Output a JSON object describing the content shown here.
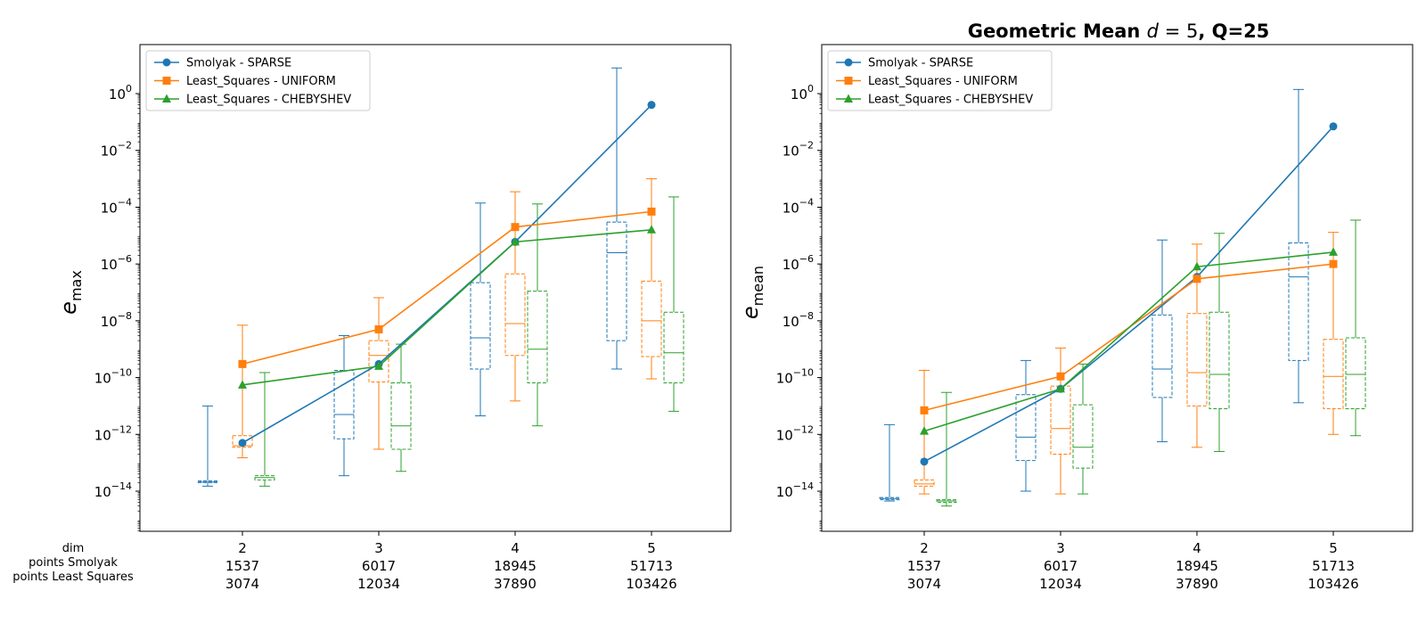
{
  "title": "Geometric Mean d = 5, Q=25",
  "row_labels": [
    "dim",
    "points Smolyak",
    "points Least Squares"
  ],
  "colors": {
    "smolyak": "#1f77b4",
    "uniform": "#ff7f0e",
    "chebyshev": "#2ca02c"
  },
  "chart_data": [
    {
      "type": "line",
      "ylabel": "e_max",
      "yscale": "log",
      "ylim": [
        1e-15,
        5
      ],
      "yticks": [
        "10^0",
        "10^-2",
        "10^-4",
        "10^-6",
        "10^-8",
        "10^-10",
        "10^-12",
        "10^-14"
      ],
      "categories": [
        {
          "dim": "2",
          "smolyak": "1537",
          "ls": "3074"
        },
        {
          "dim": "3",
          "smolyak": "6017",
          "ls": "12034"
        },
        {
          "dim": "4",
          "smolyak": "18945",
          "ls": "37890"
        },
        {
          "dim": "5",
          "smolyak": "51713",
          "ls": "103426"
        }
      ],
      "series": [
        {
          "name": "Smolyak - SPARSE",
          "marker": "circle",
          "values": [
            5e-13,
            3e-10,
            6e-06,
            0.4
          ],
          "boxes": [
            {
              "min": 1.5e-14,
              "q1": 2e-14,
              "median": 2.1e-14,
              "q3": 2.3e-14,
              "max": 1e-11
            },
            {
              "min": 3.5e-14,
              "q1": 7e-13,
              "median": 5e-12,
              "q3": 1.8e-10,
              "max": 3e-09
            },
            {
              "min": 4.5e-12,
              "q1": 2e-10,
              "median": 2.5e-09,
              "q3": 2.2e-07,
              "max": 0.00014
            },
            {
              "min": 2e-10,
              "q1": 2e-09,
              "median": 2.5e-06,
              "q3": 3e-05,
              "max": 8
            }
          ]
        },
        {
          "name": "Least_Squares - UNIFORM",
          "marker": "square",
          "values": [
            3e-10,
            5e-09,
            2e-05,
            7e-05
          ],
          "boxes": [
            {
              "min": 1.5e-13,
              "q1": 3.5e-13,
              "median": 4e-13,
              "q3": 9e-13,
              "max": 7e-09
            },
            {
              "min": 3e-13,
              "q1": 7e-11,
              "median": 6e-10,
              "q3": 2e-09,
              "max": 6.5e-08
            },
            {
              "min": 1.5e-11,
              "q1": 6e-10,
              "median": 8e-09,
              "q3": 4.5e-07,
              "max": 0.00035
            },
            {
              "min": 9e-11,
              "q1": 5.5e-10,
              "median": 1e-08,
              "q3": 2.5e-07,
              "max": 0.001
            }
          ]
        },
        {
          "name": "Least_Squares - CHEBYSHEV",
          "marker": "triangle",
          "values": [
            5.5e-11,
            2.5e-10,
            6e-06,
            1.6e-05
          ],
          "boxes": [
            {
              "min": 1.5e-14,
              "q1": 2.5e-14,
              "median": 3e-14,
              "q3": 3.5e-14,
              "max": 1.5e-10
            },
            {
              "min": 5e-14,
              "q1": 3e-13,
              "median": 2e-12,
              "q3": 6.5e-11,
              "max": 1.5e-09
            },
            {
              "min": 2e-12,
              "q1": 6.5e-11,
              "median": 1e-09,
              "q3": 1.1e-07,
              "max": 0.00013
            },
            {
              "min": 6.5e-12,
              "q1": 6.5e-11,
              "median": 7.5e-10,
              "q3": 2e-08,
              "max": 0.00023
            }
          ]
        }
      ]
    },
    {
      "type": "line",
      "title": "Geometric Mean d = 5, Q=25",
      "ylabel": "e_mean",
      "yscale": "log",
      "ylim": [
        1e-15,
        5
      ],
      "yticks": [
        "10^0",
        "10^-2",
        "10^-4",
        "10^-6",
        "10^-8",
        "10^-10",
        "10^-12",
        "10^-14"
      ],
      "categories": [
        {
          "dim": "2",
          "smolyak": "1537",
          "ls": "3074"
        },
        {
          "dim": "3",
          "smolyak": "6017",
          "ls": "12034"
        },
        {
          "dim": "4",
          "smolyak": "18945",
          "ls": "37890"
        },
        {
          "dim": "5",
          "smolyak": "51713",
          "ls": "103426"
        }
      ],
      "series": [
        {
          "name": "Smolyak - SPARSE",
          "marker": "circle",
          "values": [
            1.1e-13,
            4e-11,
            3.5e-07,
            0.07
          ],
          "boxes": [
            {
              "min": 4.5e-15,
              "q1": 5e-15,
              "median": 5.5e-15,
              "q3": 6e-15,
              "max": 2.2e-12
            },
            {
              "min": 1e-14,
              "q1": 1.2e-13,
              "median": 8e-13,
              "q3": 2.5e-11,
              "max": 4e-10
            },
            {
              "min": 5.5e-13,
              "q1": 2e-11,
              "median": 2e-10,
              "q3": 1.6e-08,
              "max": 7e-06
            },
            {
              "min": 1.3e-11,
              "q1": 4e-10,
              "median": 3.5e-07,
              "q3": 5.5e-06,
              "max": 1.4
            }
          ]
        },
        {
          "name": "Least_Squares - UNIFORM",
          "marker": "square",
          "values": [
            7e-12,
            1.1e-10,
            3e-07,
            1e-06
          ],
          "boxes": [
            {
              "min": 8e-15,
              "q1": 1.5e-14,
              "median": 1.8e-14,
              "q3": 2.5e-14,
              "max": 1.8e-10
            },
            {
              "min": 8e-15,
              "q1": 2e-13,
              "median": 1.6e-12,
              "q3": 5e-11,
              "max": 1.1e-09
            },
            {
              "min": 3.5e-13,
              "q1": 1e-11,
              "median": 1.5e-10,
              "q3": 1.8e-08,
              "max": 5e-06
            },
            {
              "min": 1e-12,
              "q1": 8e-12,
              "median": 1.1e-10,
              "q3": 2.2e-09,
              "max": 1.3e-05
            }
          ]
        },
        {
          "name": "Least_Squares - CHEBYSHEV",
          "marker": "triangle",
          "values": [
            1.3e-12,
            4e-11,
            8e-07,
            2.6e-06
          ],
          "boxes": [
            {
              "min": 3e-15,
              "q1": 4e-15,
              "median": 4.5e-15,
              "q3": 5e-15,
              "max": 3e-11
            },
            {
              "min": 8e-15,
              "q1": 6.5e-14,
              "median": 3.5e-13,
              "q3": 1.1e-11,
              "max": 3e-10
            },
            {
              "min": 2.5e-13,
              "q1": 8e-12,
              "median": 1.3e-10,
              "q3": 2e-08,
              "max": 1.2e-05
            },
            {
              "min": 9e-13,
              "q1": 8e-12,
              "median": 1.3e-10,
              "q3": 2.5e-09,
              "max": 3.5e-05
            }
          ]
        }
      ]
    }
  ]
}
